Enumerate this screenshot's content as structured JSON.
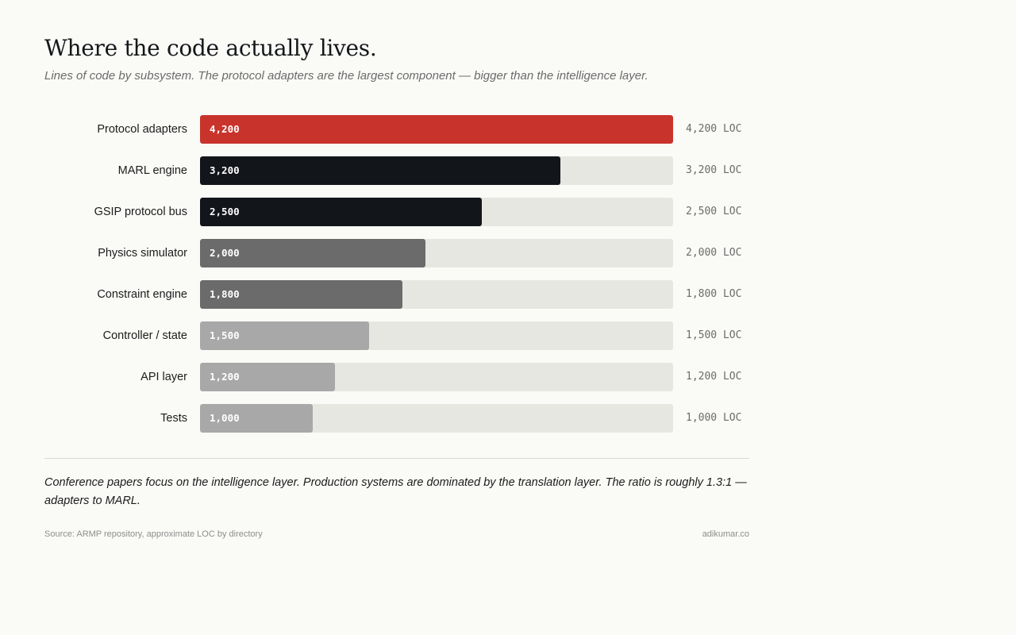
{
  "header": {
    "title": "Where the code actually lives.",
    "subtitle": "Lines of code by subsystem. The protocol adapters are the largest component — bigger than the intelligence layer."
  },
  "chart_data": {
    "type": "bar",
    "orientation": "horizontal",
    "categories": [
      "Protocol adapters",
      "MARL engine",
      "GSIP protocol bus",
      "Physics simulator",
      "Constraint engine",
      "Controller / state",
      "API layer",
      "Tests"
    ],
    "values": [
      4200,
      3200,
      2500,
      2000,
      1800,
      1500,
      1200,
      1000
    ],
    "bar_labels": [
      "4,200",
      "3,200",
      "2,500",
      "2,000",
      "1,800",
      "1,500",
      "1,200",
      "1,000"
    ],
    "value_labels": [
      "4,200 LOC",
      "3,200 LOC",
      "2,500 LOC",
      "2,000 LOC",
      "1,800 LOC",
      "1,500 LOC",
      "1,200 LOC",
      "1,000 LOC"
    ],
    "bar_colors": [
      "#c8342c",
      "#121519",
      "#121519",
      "#6b6b6b",
      "#6b6b6b",
      "#a8a8a8",
      "#a8a8a8",
      "#a8a8a8"
    ],
    "track_color": "#e7e7e2",
    "xlim": [
      0,
      4200
    ],
    "title": "",
    "xlabel": "",
    "ylabel": "",
    "grid": false,
    "legend": "none"
  },
  "footer": {
    "note": "Conference papers focus on the intelligence layer. Production systems are dominated by the translation layer. The ratio is roughly 1.3:1 — adapters to MARL.",
    "source": "Source: ARMP repository, approximate LOC by directory",
    "credit": "adikumar.co"
  }
}
